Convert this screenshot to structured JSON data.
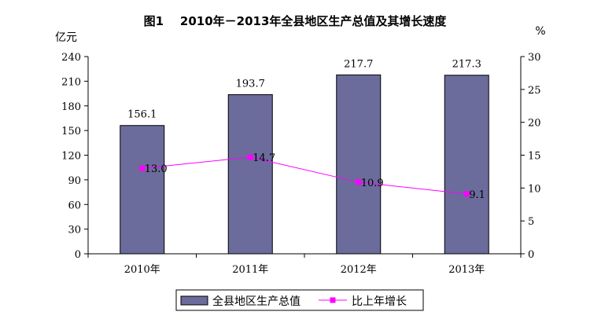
{
  "chart_data": {
    "type": "bar",
    "title": "图1    2010年－2013年全县地区生产总值及其增长速度",
    "left_unit": "亿元",
    "right_unit": "%",
    "categories": [
      "2010年",
      "2011年",
      "2012年",
      "2013年"
    ],
    "series": [
      {
        "name": "全县地区生产总值",
        "type": "bar",
        "axis": "left",
        "color": "#6b6b9c",
        "values": [
          156.1,
          193.7,
          217.7,
          217.3
        ],
        "labels": [
          "156.1",
          "193.7",
          "217.7",
          "217.3"
        ]
      },
      {
        "name": "比上年增长",
        "type": "line",
        "axis": "right",
        "color": "#ff00ff",
        "values": [
          13.0,
          14.7,
          10.9,
          9.1
        ],
        "labels": [
          "13.0",
          "14.7",
          "10.9",
          "9.1"
        ]
      }
    ],
    "ylim_left": [
      0,
      240
    ],
    "yticks_left": [
      0,
      30,
      60,
      90,
      120,
      150,
      180,
      210,
      240
    ],
    "ylim_right": [
      0,
      30
    ],
    "yticks_right": [
      0,
      5,
      10,
      15,
      20,
      25,
      30
    ],
    "grid": false,
    "legend_position": "bottom"
  }
}
